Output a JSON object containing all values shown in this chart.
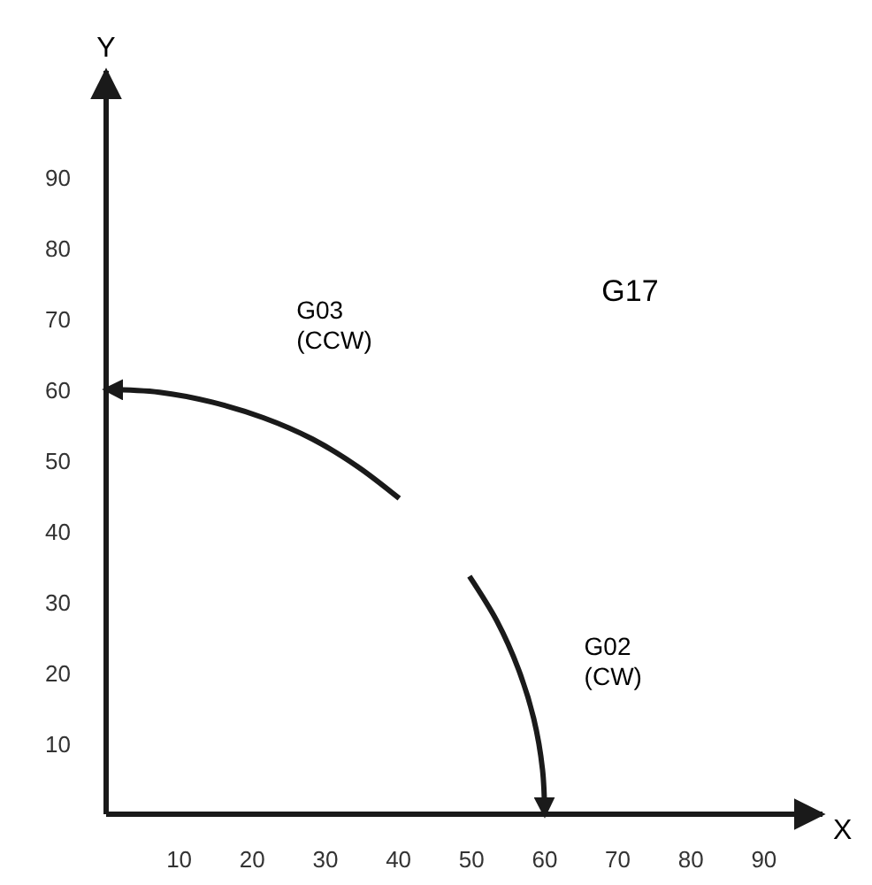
{
  "chart_data": {
    "type": "line",
    "xlabel": "X",
    "ylabel": "Y",
    "series": [
      {
        "color": "#1a1a1a",
        "x": [
          40.1,
          34.4,
          28.2,
          21.5,
          14.5,
          7.3,
          0
        ],
        "values": [
          44.6,
          49.1,
          53.0,
          56.0,
          58.2,
          59.6,
          60
        ]
      },
      {
        "color": "#1a1a1a",
        "x": [
          49.7,
          53.5,
          56.4,
          58.5,
          59.7,
          60
        ],
        "values": [
          33.6,
          27.2,
          20.5,
          13.5,
          6.3,
          0
        ]
      }
    ],
    "xlim": [
      0,
      98
    ],
    "ylim": [
      0,
      105
    ],
    "xticks": [
      10,
      20,
      30,
      40,
      50,
      60,
      70,
      80,
      90
    ],
    "yticks": [
      10,
      20,
      30,
      40,
      50,
      60,
      70,
      80,
      90
    ],
    "grid": false,
    "marker": "none",
    "line_style": "solid",
    "annotations": [
      "G03 (CCW)",
      "G02 (CW)",
      "G17"
    ]
  }
}
